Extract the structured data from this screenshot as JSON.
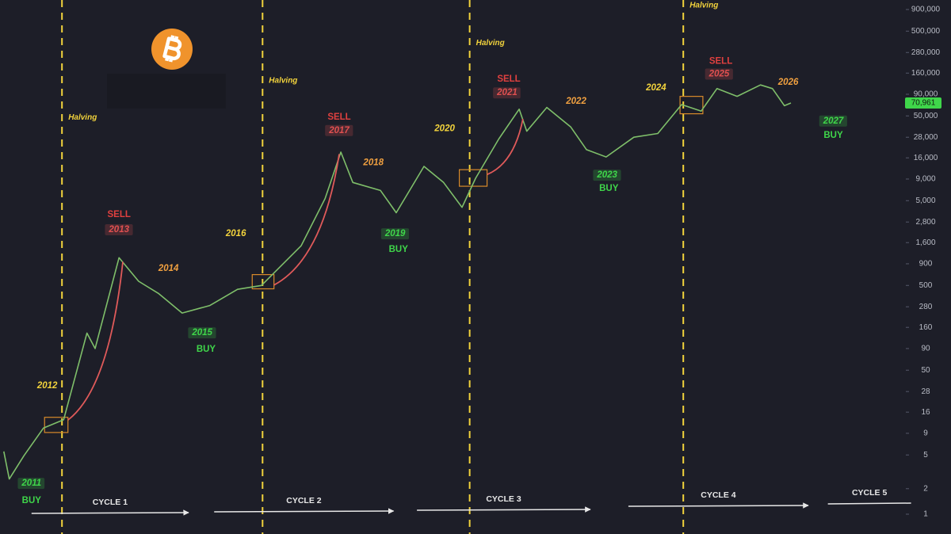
{
  "chart_data": {
    "type": "line",
    "log_y": true,
    "background": "#1d1e28",
    "xlim": [
      2011.73,
      2028.35
    ],
    "ylim": [
      1,
      900000
    ],
    "yticks": [
      1,
      2,
      5,
      9,
      16,
      28,
      50,
      90,
      160,
      280,
      500,
      900,
      {
        "value": 1600,
        "label": "1,600"
      },
      {
        "value": 2800,
        "label": "2,800"
      },
      {
        "value": 5000,
        "label": "5,000"
      },
      {
        "value": 9000,
        "label": "9,000"
      },
      {
        "value": 16000,
        "label": "16,000"
      },
      {
        "value": 28000,
        "label": "28,000"
      },
      {
        "value": 50000,
        "label": "50,000"
      },
      {
        "value": 90000,
        "label": "90,000"
      },
      {
        "value": 160000,
        "label": "160,000"
      },
      {
        "value": 280000,
        "label": "280,000"
      },
      {
        "value": 500000,
        "label": "500,000"
      },
      {
        "value": 900000,
        "label": "900,000"
      }
    ],
    "series": [
      {
        "color": "#7fbf6a",
        "x": [
          2011.8,
          2011.9,
          2012.17,
          2012.53,
          2012.9,
          2013.33,
          2013.48,
          2013.92,
          2014.28,
          2014.65,
          2015.08,
          2015.59,
          2016.1,
          2016.54,
          2017.27,
          2017.71,
          2018.0,
          2018.22,
          2018.73,
          2019.02,
          2019.53,
          2019.89,
          2020.23,
          2020.48,
          2020.91,
          2021.28,
          2021.42,
          2021.79,
          2022.23,
          2022.52,
          2022.88,
          2023.39,
          2023.83,
          2024.27,
          2024.63,
          2024.92,
          2025.29,
          2025.72,
          2025.94,
          2026.16,
          2026.28
        ],
        "values": [
          5.5,
          2.6,
          4.9,
          10.4,
          13,
          137,
          90,
          1060,
          560,
          400,
          236,
          290,
          450,
          500,
          1470,
          5300,
          18700,
          8200,
          6600,
          3600,
          12700,
          8200,
          4170,
          9200,
          27000,
          60000,
          33000,
          63000,
          37000,
          20000,
          16400,
          28000,
          31000,
          68000,
          57000,
          105000,
          85000,
          116000,
          105000,
          66000,
          70961
        ],
        "last_label": "70,961"
      }
    ],
    "halvings": {
      "color": "#f2d33c",
      "label": "Halving",
      "x": [
        2012.87,
        2016.56,
        2020.37,
        2024.3
      ],
      "label_y": [
        48000,
        130000,
        362000,
        1000000
      ]
    },
    "annotations": [
      {
        "text": "2011",
        "x": 2012.31,
        "y": 2.31,
        "color": "#3fd64a",
        "boxed": true
      },
      {
        "text": "BUY",
        "x": 2012.31,
        "y": 1.44,
        "color": "#3fd64a",
        "boxed": false
      },
      {
        "text": "2012",
        "x": 2012.6,
        "y": 32.7,
        "color": "#f2d33c",
        "boxed": false
      },
      {
        "text": "SELL",
        "x": 2013.92,
        "y": 3410,
        "color": "#e0403f",
        "boxed": false
      },
      {
        "text": "2013",
        "x": 2013.92,
        "y": 2270,
        "color": "#e05050",
        "boxed": true
      },
      {
        "text": "2014",
        "x": 2014.83,
        "y": 790,
        "color": "#f0a040",
        "boxed": false
      },
      {
        "text": "2015",
        "x": 2015.45,
        "y": 138,
        "color": "#3fd64a",
        "boxed": true
      },
      {
        "text": "BUY",
        "x": 2015.52,
        "y": 87.8,
        "color": "#3fd64a",
        "boxed": false
      },
      {
        "text": "2016",
        "x": 2016.07,
        "y": 2030,
        "color": "#f2d33c",
        "boxed": false
      },
      {
        "text": "SELL",
        "x": 2017.97,
        "y": 48000,
        "color": "#e0403f",
        "boxed": false
      },
      {
        "text": "2017",
        "x": 2017.97,
        "y": 33600,
        "color": "#e05050",
        "boxed": true
      },
      {
        "text": "2018",
        "x": 2018.6,
        "y": 13980,
        "color": "#f0a040",
        "boxed": false
      },
      {
        "text": "2019",
        "x": 2019.0,
        "y": 2030,
        "color": "#3fd64a",
        "boxed": true
      },
      {
        "text": "BUY",
        "x": 2019.06,
        "y": 1320,
        "color": "#3fd64a",
        "boxed": false
      },
      {
        "text": "2020",
        "x": 2019.91,
        "y": 35200,
        "color": "#f2d33c",
        "boxed": false
      },
      {
        "text": "SELL",
        "x": 2021.09,
        "y": 135000,
        "color": "#e0403f",
        "boxed": false
      },
      {
        "text": "2021",
        "x": 2021.06,
        "y": 93500,
        "color": "#e05050",
        "boxed": true
      },
      {
        "text": "2022",
        "x": 2022.33,
        "y": 73800,
        "color": "#f0a040",
        "boxed": false
      },
      {
        "text": "2023",
        "x": 2022.9,
        "y": 10000,
        "color": "#3fd64a",
        "boxed": true
      },
      {
        "text": "BUY",
        "x": 2022.93,
        "y": 6970,
        "color": "#3fd64a",
        "boxed": false
      },
      {
        "text": "2024",
        "x": 2023.8,
        "y": 107000,
        "color": "#f2d33c",
        "boxed": false
      },
      {
        "text": "SELL",
        "x": 2024.99,
        "y": 220000,
        "color": "#e0403f",
        "boxed": false
      },
      {
        "text": "2025",
        "x": 2024.96,
        "y": 156000,
        "color": "#e05050",
        "boxed": true
      },
      {
        "text": "2026",
        "x": 2026.23,
        "y": 124000,
        "color": "#f0a040",
        "boxed": false
      },
      {
        "text": "2027",
        "x": 2027.06,
        "y": 43500,
        "color": "#3fd64a",
        "boxed": true
      },
      {
        "text": "BUY",
        "x": 2027.06,
        "y": 29400,
        "color": "#3fd64a",
        "boxed": false
      }
    ],
    "highlights": [
      {
        "x": [
          2012.55,
          2012.98
        ],
        "y": [
          9.2,
          13.9
        ]
      },
      {
        "x": [
          2016.37,
          2016.77
        ],
        "y": [
          456,
          671
        ]
      },
      {
        "x": [
          2020.18,
          2020.69
        ],
        "y": [
          7400,
          11600
        ]
      },
      {
        "x": [
          2024.24,
          2024.66
        ],
        "y": [
          53000,
          85000
        ]
      }
    ],
    "curves": {
      "color": "#e05a5a",
      "segments": [
        {
          "x": [
            2012.98,
            2013.99
          ],
          "y": [
            12.9,
            951
          ]
        },
        {
          "x": [
            2016.77,
            2017.97
          ],
          "y": [
            505,
            17700
          ]
        },
        {
          "x": [
            2020.69,
            2021.35
          ],
          "y": [
            10170,
            46100
          ]
        }
      ]
    },
    "cycles": [
      {
        "label": "CYCLE 1",
        "start": 2012.31,
        "end": 2015.2
      },
      {
        "label": "CYCLE 2",
        "start": 2015.67,
        "end": 2018.97
      },
      {
        "label": "CYCLE 3",
        "start": 2019.4,
        "end": 2022.59
      },
      {
        "label": "CYCLE 4",
        "start": 2023.29,
        "end": 2026.6
      },
      {
        "label": "CYCLE 5",
        "start": 2026.96,
        "end": 2028.49
      }
    ]
  }
}
